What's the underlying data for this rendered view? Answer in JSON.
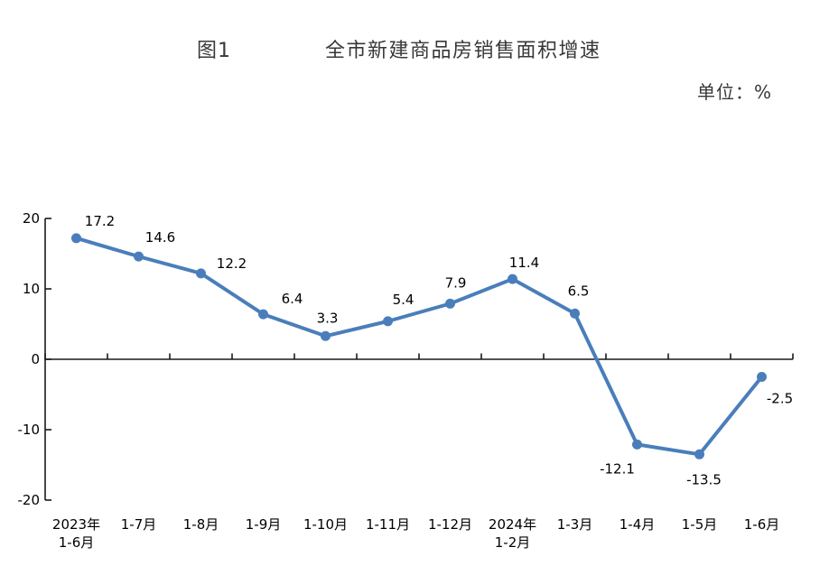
{
  "figure": {
    "label": "图1",
    "title": "全市新建商品房销售面积增速",
    "unit_label": "单位：%"
  },
  "chart_data": {
    "type": "line",
    "title": "全市新建商品房销售面积增速",
    "categories": [
      "2023年\n1-6月",
      "1-7月",
      "1-8月",
      "1-9月",
      "1-10月",
      "1-11月",
      "1-12月",
      "2024年\n1-2月",
      "1-3月",
      "1-4月",
      "1-5月",
      "1-6月"
    ],
    "values": [
      17.2,
      14.6,
      12.2,
      6.4,
      3.3,
      5.4,
      7.9,
      11.4,
      6.5,
      -12.1,
      -13.5,
      -2.5
    ],
    "xlabel": "",
    "ylabel": "单位：%",
    "ylim": [
      -20,
      20
    ],
    "yticks": [
      20,
      10,
      0,
      -10,
      -20
    ],
    "grid": false,
    "legend": null,
    "line_color": "#4a7ebb",
    "marker": "circle",
    "axis_color": "#1a1a1a",
    "text_color": "#000000"
  }
}
